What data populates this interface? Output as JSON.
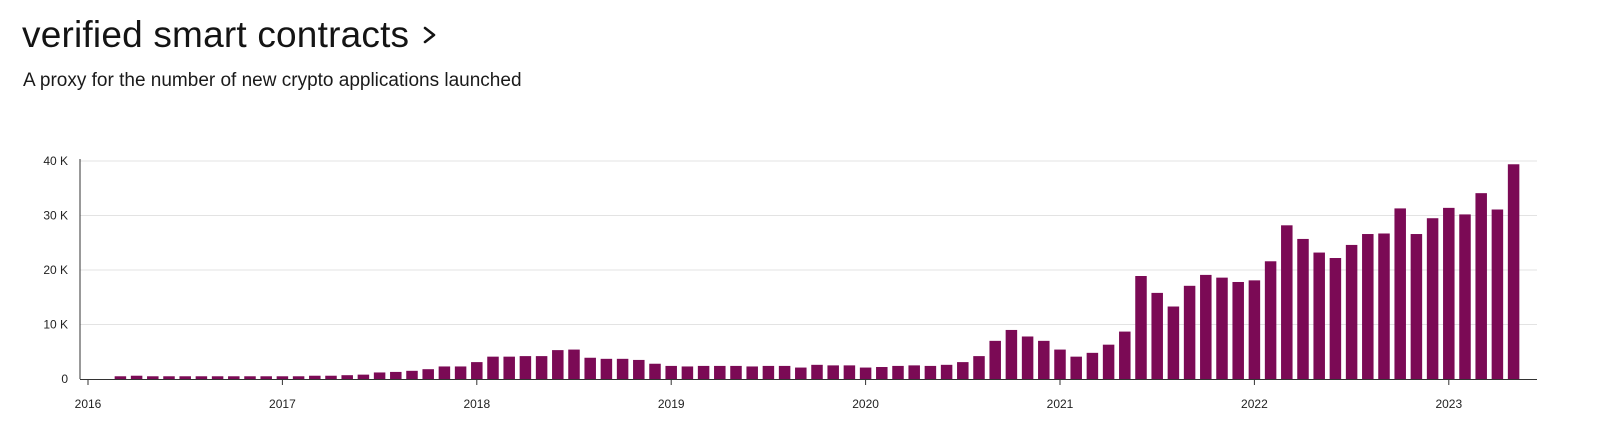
{
  "header": {
    "title": "verified smart contracts",
    "subtitle": "A proxy for the number of new crypto applications launched",
    "chevron_icon": "chevron-right-icon"
  },
  "colors": {
    "bar": "#7b0a55",
    "grid": "#e3e3e3",
    "axis": "#333333"
  },
  "chart_data": {
    "type": "bar",
    "title": "verified smart contracts",
    "subtitle": "A proxy for the number of new crypto applications launched",
    "xlabel": "",
    "ylabel": "",
    "ylim": [
      0,
      40000
    ],
    "xlim": [
      "2016-01",
      "2023-05"
    ],
    "yticks": [
      0,
      10000,
      20000,
      30000,
      40000
    ],
    "ytick_labels": [
      "0",
      "10 K",
      "20 K",
      "30 K",
      "40 K"
    ],
    "xtick_labels": [
      "2016",
      "2017",
      "2018",
      "2019",
      "2020",
      "2021",
      "2022",
      "2023"
    ],
    "grid": true,
    "legend": "none",
    "categories": [
      "2016-01",
      "2016-02",
      "2016-03",
      "2016-04",
      "2016-05",
      "2016-06",
      "2016-07",
      "2016-08",
      "2016-09",
      "2016-10",
      "2016-11",
      "2016-12",
      "2017-01",
      "2017-02",
      "2017-03",
      "2017-04",
      "2017-05",
      "2017-06",
      "2017-07",
      "2017-08",
      "2017-09",
      "2017-10",
      "2017-11",
      "2017-12",
      "2018-01",
      "2018-02",
      "2018-03",
      "2018-04",
      "2018-05",
      "2018-06",
      "2018-07",
      "2018-08",
      "2018-09",
      "2018-10",
      "2018-11",
      "2018-12",
      "2019-01",
      "2019-02",
      "2019-03",
      "2019-04",
      "2019-05",
      "2019-06",
      "2019-07",
      "2019-08",
      "2019-09",
      "2019-10",
      "2019-11",
      "2019-12",
      "2020-01",
      "2020-02",
      "2020-03",
      "2020-04",
      "2020-05",
      "2020-06",
      "2020-07",
      "2020-08",
      "2020-09",
      "2020-10",
      "2020-11",
      "2020-12",
      "2021-01",
      "2021-02",
      "2021-03",
      "2021-04",
      "2021-05",
      "2021-06",
      "2021-07",
      "2021-08",
      "2021-09",
      "2021-10",
      "2021-11",
      "2021-12",
      "2022-01",
      "2022-02",
      "2022-03",
      "2022-04",
      "2022-05",
      "2022-06",
      "2022-07",
      "2022-08",
      "2022-09",
      "2022-10",
      "2022-11",
      "2022-12",
      "2023-01",
      "2023-02",
      "2023-03",
      "2023-04",
      "2023-05"
    ],
    "values": [
      0,
      0,
      500,
      600,
      500,
      500,
      500,
      500,
      500,
      500,
      500,
      500,
      500,
      500,
      600,
      600,
      700,
      800,
      1200,
      1300,
      1500,
      1800,
      2300,
      2300,
      3100,
      4100,
      4100,
      4200,
      4200,
      5300,
      5400,
      3900,
      3700,
      3700,
      3500,
      2800,
      2400,
      2300,
      2400,
      2400,
      2400,
      2300,
      2400,
      2400,
      2100,
      2600,
      2500,
      2500,
      2100,
      2200,
      2400,
      2500,
      2400,
      2600,
      3100,
      4200,
      7000,
      9000,
      7800,
      7000,
      5400,
      4100,
      4800,
      6300,
      8700,
      18900,
      15800,
      13300,
      17100,
      19100,
      18600,
      17800,
      18100,
      21600,
      28200,
      25700,
      23200,
      22200,
      24600,
      26600,
      26700,
      31300,
      26600,
      29500,
      31400,
      30200,
      34100,
      31100,
      39400
    ]
  }
}
